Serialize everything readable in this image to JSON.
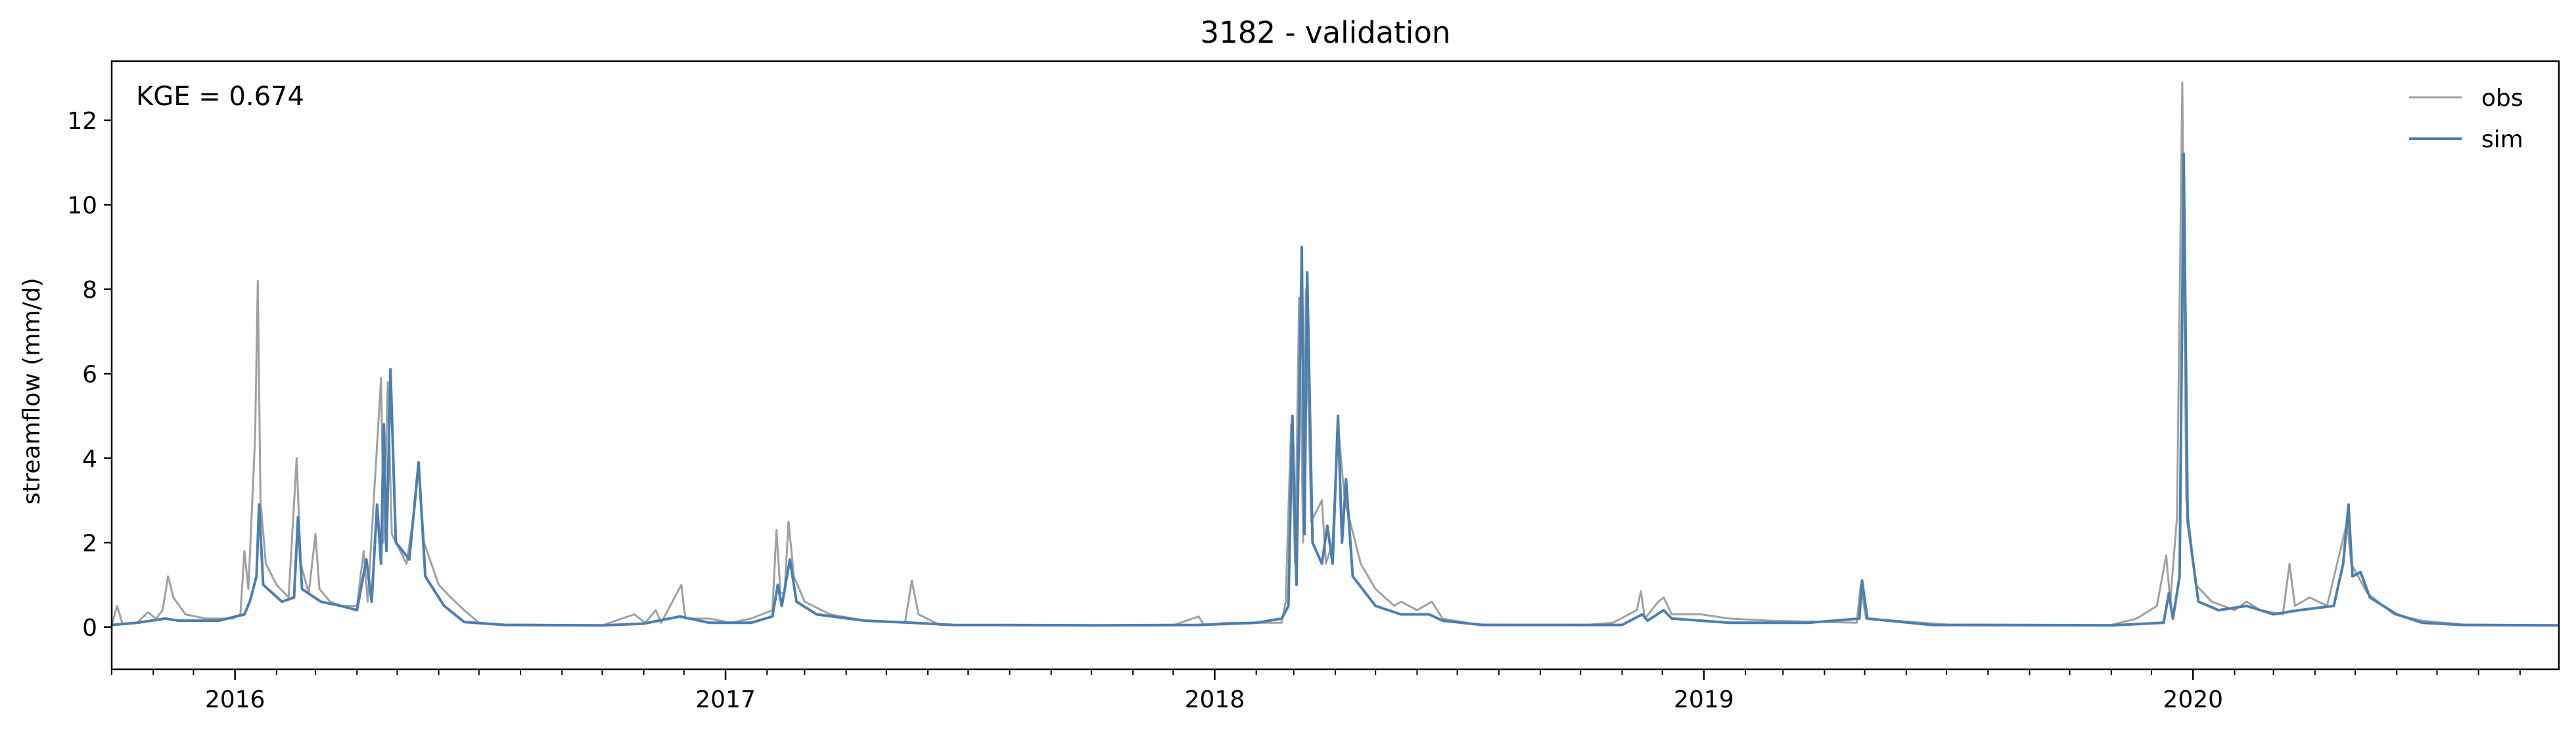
{
  "chart_data": {
    "type": "line",
    "title": "3182 - validation",
    "xlabel": "",
    "ylabel": "streamflow (mm/d)",
    "annotation": "KGE = 0.674",
    "xlim": [
      "2015-10-01",
      "2020-09-30"
    ],
    "ylim": [
      -1,
      13.4
    ],
    "yticks": [
      0,
      2,
      4,
      6,
      8,
      10,
      12
    ],
    "xticks": [
      {
        "date": "2016-01-01",
        "label": "2016"
      },
      {
        "date": "2017-01-01",
        "label": "2017"
      },
      {
        "date": "2018-01-01",
        "label": "2018"
      },
      {
        "date": "2019-01-01",
        "label": "2019"
      },
      {
        "date": "2020-01-01",
        "label": "2020"
      }
    ],
    "legend_position": "top-right",
    "grid": false,
    "series": [
      {
        "name": "obs",
        "color": "#a0a0a0",
        "points": [
          [
            "2015-10-01",
            0.05
          ],
          [
            "2015-10-05",
            0.5
          ],
          [
            "2015-10-09",
            0.08
          ],
          [
            "2015-10-20",
            0.1
          ],
          [
            "2015-10-28",
            0.35
          ],
          [
            "2015-11-03",
            0.2
          ],
          [
            "2015-11-08",
            0.4
          ],
          [
            "2015-11-12",
            1.2
          ],
          [
            "2015-11-16",
            0.7
          ],
          [
            "2015-11-25",
            0.3
          ],
          [
            "2015-12-10",
            0.2
          ],
          [
            "2015-12-30",
            0.2
          ],
          [
            "2016-01-05",
            0.3
          ],
          [
            "2016-01-08",
            1.8
          ],
          [
            "2016-01-11",
            0.9
          ],
          [
            "2016-01-16",
            4.5
          ],
          [
            "2016-01-18",
            8.2
          ],
          [
            "2016-01-20",
            3.0
          ],
          [
            "2016-01-24",
            1.5
          ],
          [
            "2016-02-01",
            1.0
          ],
          [
            "2016-02-10",
            0.7
          ],
          [
            "2016-02-16",
            4.0
          ],
          [
            "2016-02-19",
            1.5
          ],
          [
            "2016-02-25",
            0.8
          ],
          [
            "2016-03-01",
            2.2
          ],
          [
            "2016-03-04",
            0.9
          ],
          [
            "2016-03-12",
            0.6
          ],
          [
            "2016-03-20",
            0.5
          ],
          [
            "2016-04-01",
            0.5
          ],
          [
            "2016-04-06",
            1.8
          ],
          [
            "2016-04-09",
            0.6
          ],
          [
            "2016-04-19",
            5.9
          ],
          [
            "2016-04-21",
            2.0
          ],
          [
            "2016-04-24",
            5.8
          ],
          [
            "2016-04-27",
            2.2
          ],
          [
            "2016-05-08",
            1.5
          ],
          [
            "2016-05-14",
            2.8
          ],
          [
            "2016-05-17",
            3.8
          ],
          [
            "2016-05-21",
            2.0
          ],
          [
            "2016-06-01",
            1.0
          ],
          [
            "2016-06-10",
            0.7
          ],
          [
            "2016-06-20",
            0.4
          ],
          [
            "2016-07-01",
            0.1
          ],
          [
            "2016-07-20",
            0.06
          ],
          [
            "2016-09-01",
            0.05
          ],
          [
            "2016-10-01",
            0.04
          ],
          [
            "2016-10-25",
            0.3
          ],
          [
            "2016-11-02",
            0.1
          ],
          [
            "2016-11-10",
            0.4
          ],
          [
            "2016-11-14",
            0.1
          ],
          [
            "2016-11-29",
            1.0
          ],
          [
            "2016-12-02",
            0.2
          ],
          [
            "2016-12-20",
            0.2
          ],
          [
            "2017-01-05",
            0.1
          ],
          [
            "2017-01-20",
            0.2
          ],
          [
            "2017-02-05",
            0.4
          ],
          [
            "2017-02-08",
            2.3
          ],
          [
            "2017-02-11",
            0.8
          ],
          [
            "2017-02-14",
            0.8
          ],
          [
            "2017-02-17",
            2.5
          ],
          [
            "2017-02-21",
            1.2
          ],
          [
            "2017-03-01",
            0.6
          ],
          [
            "2017-03-20",
            0.3
          ],
          [
            "2017-04-15",
            0.15
          ],
          [
            "2017-05-15",
            0.1
          ],
          [
            "2017-05-20",
            1.1
          ],
          [
            "2017-05-25",
            0.3
          ],
          [
            "2017-06-10",
            0.05
          ],
          [
            "2017-09-01",
            0.04
          ],
          [
            "2017-12-01",
            0.04
          ],
          [
            "2017-12-20",
            0.25
          ],
          [
            "2017-12-24",
            0.05
          ],
          [
            "2018-01-10",
            0.1
          ],
          [
            "2018-02-01",
            0.1
          ],
          [
            "2018-02-20",
            0.1
          ],
          [
            "2018-02-23",
            0.6
          ],
          [
            "2018-02-27",
            4.8
          ],
          [
            "2018-03-02",
            1.5
          ],
          [
            "2018-03-05",
            7.8
          ],
          [
            "2018-03-08",
            2.0
          ],
          [
            "2018-03-10",
            8.0
          ],
          [
            "2018-03-14",
            2.5
          ],
          [
            "2018-03-22",
            3.0
          ],
          [
            "2018-03-25",
            1.5
          ],
          [
            "2018-03-30",
            2.0
          ],
          [
            "2018-04-03",
            4.8
          ],
          [
            "2018-04-08",
            3.0
          ],
          [
            "2018-04-20",
            1.5
          ],
          [
            "2018-05-01",
            0.9
          ],
          [
            "2018-05-15",
            0.5
          ],
          [
            "2018-05-20",
            0.6
          ],
          [
            "2018-06-01",
            0.4
          ],
          [
            "2018-06-12",
            0.6
          ],
          [
            "2018-06-20",
            0.2
          ],
          [
            "2018-07-15",
            0.06
          ],
          [
            "2018-10-01",
            0.04
          ],
          [
            "2018-10-25",
            0.1
          ],
          [
            "2018-11-12",
            0.4
          ],
          [
            "2018-11-15",
            0.85
          ],
          [
            "2018-11-18",
            0.2
          ],
          [
            "2018-11-28",
            0.6
          ],
          [
            "2018-12-02",
            0.7
          ],
          [
            "2018-12-08",
            0.3
          ],
          [
            "2018-12-30",
            0.3
          ],
          [
            "2019-01-20",
            0.2
          ],
          [
            "2019-02-20",
            0.15
          ],
          [
            "2019-04-25",
            0.1
          ],
          [
            "2019-04-28",
            1.0
          ],
          [
            "2019-05-02",
            0.2
          ],
          [
            "2019-07-01",
            0.06
          ],
          [
            "2019-11-01",
            0.05
          ],
          [
            "2019-11-20",
            0.2
          ],
          [
            "2019-12-05",
            0.5
          ],
          [
            "2019-12-12",
            1.7
          ],
          [
            "2019-12-15",
            0.6
          ],
          [
            "2019-12-20",
            2.6
          ],
          [
            "2019-12-24",
            12.9
          ],
          [
            "2019-12-27",
            3.0
          ],
          [
            "2020-01-03",
            1.0
          ],
          [
            "2020-01-15",
            0.6
          ],
          [
            "2020-02-01",
            0.4
          ],
          [
            "2020-02-10",
            0.6
          ],
          [
            "2020-02-20",
            0.4
          ],
          [
            "2020-03-08",
            0.3
          ],
          [
            "2020-03-13",
            1.5
          ],
          [
            "2020-03-17",
            0.5
          ],
          [
            "2020-03-28",
            0.7
          ],
          [
            "2020-04-10",
            0.5
          ],
          [
            "2020-04-25",
            2.5
          ],
          [
            "2020-04-28",
            1.5
          ],
          [
            "2020-05-10",
            0.8
          ],
          [
            "2020-05-30",
            0.3
          ],
          [
            "2020-06-20",
            0.15
          ],
          [
            "2020-07-20",
            0.06
          ],
          [
            "2020-09-30",
            0.04
          ]
        ]
      },
      {
        "name": "sim",
        "color": "#4a7fb0",
        "points": [
          [
            "2015-10-01",
            0.05
          ],
          [
            "2015-10-20",
            0.1
          ],
          [
            "2015-11-10",
            0.2
          ],
          [
            "2015-11-20",
            0.15
          ],
          [
            "2015-12-20",
            0.15
          ],
          [
            "2016-01-08",
            0.3
          ],
          [
            "2016-01-12",
            0.6
          ],
          [
            "2016-01-17",
            1.2
          ],
          [
            "2016-01-19",
            2.9
          ],
          [
            "2016-01-22",
            1.0
          ],
          [
            "2016-02-05",
            0.6
          ],
          [
            "2016-02-14",
            0.7
          ],
          [
            "2016-02-17",
            2.6
          ],
          [
            "2016-02-20",
            0.9
          ],
          [
            "2016-03-05",
            0.6
          ],
          [
            "2016-03-20",
            0.5
          ],
          [
            "2016-04-01",
            0.4
          ],
          [
            "2016-04-08",
            1.6
          ],
          [
            "2016-04-12",
            0.6
          ],
          [
            "2016-04-16",
            2.9
          ],
          [
            "2016-04-19",
            1.5
          ],
          [
            "2016-04-21",
            4.8
          ],
          [
            "2016-04-23",
            1.8
          ],
          [
            "2016-04-26",
            6.1
          ],
          [
            "2016-04-30",
            2.0
          ],
          [
            "2016-05-10",
            1.6
          ],
          [
            "2016-05-17",
            3.9
          ],
          [
            "2016-05-22",
            1.2
          ],
          [
            "2016-06-05",
            0.5
          ],
          [
            "2016-06-20",
            0.12
          ],
          [
            "2016-07-20",
            0.05
          ],
          [
            "2016-10-01",
            0.04
          ],
          [
            "2016-11-01",
            0.08
          ],
          [
            "2016-11-28",
            0.25
          ],
          [
            "2016-12-20",
            0.1
          ],
          [
            "2017-01-20",
            0.1
          ],
          [
            "2017-02-05",
            0.25
          ],
          [
            "2017-02-09",
            1.0
          ],
          [
            "2017-02-12",
            0.5
          ],
          [
            "2017-02-18",
            1.6
          ],
          [
            "2017-02-23",
            0.6
          ],
          [
            "2017-03-10",
            0.3
          ],
          [
            "2017-04-15",
            0.15
          ],
          [
            "2017-05-20",
            0.1
          ],
          [
            "2017-06-20",
            0.05
          ],
          [
            "2017-10-01",
            0.04
          ],
          [
            "2017-12-20",
            0.05
          ],
          [
            "2018-02-01",
            0.1
          ],
          [
            "2018-02-20",
            0.2
          ],
          [
            "2018-02-25",
            0.5
          ],
          [
            "2018-02-28",
            5.0
          ],
          [
            "2018-03-03",
            1.0
          ],
          [
            "2018-03-07",
            9.0
          ],
          [
            "2018-03-09",
            2.2
          ],
          [
            "2018-03-11",
            8.4
          ],
          [
            "2018-03-15",
            2.0
          ],
          [
            "2018-03-22",
            1.5
          ],
          [
            "2018-03-26",
            2.4
          ],
          [
            "2018-03-30",
            1.5
          ],
          [
            "2018-04-03",
            5.0
          ],
          [
            "2018-04-06",
            2.0
          ],
          [
            "2018-04-09",
            3.5
          ],
          [
            "2018-04-14",
            1.2
          ],
          [
            "2018-05-01",
            0.5
          ],
          [
            "2018-05-20",
            0.3
          ],
          [
            "2018-06-10",
            0.3
          ],
          [
            "2018-06-20",
            0.15
          ],
          [
            "2018-07-20",
            0.05
          ],
          [
            "2018-11-01",
            0.05
          ],
          [
            "2018-11-16",
            0.3
          ],
          [
            "2018-11-20",
            0.15
          ],
          [
            "2018-12-02",
            0.4
          ],
          [
            "2018-12-08",
            0.2
          ],
          [
            "2019-01-20",
            0.1
          ],
          [
            "2019-03-20",
            0.1
          ],
          [
            "2019-04-27",
            0.2
          ],
          [
            "2019-04-29",
            1.1
          ],
          [
            "2019-05-03",
            0.2
          ],
          [
            "2019-06-20",
            0.05
          ],
          [
            "2019-11-01",
            0.04
          ],
          [
            "2019-12-10",
            0.1
          ],
          [
            "2019-12-14",
            0.8
          ],
          [
            "2019-12-17",
            0.2
          ],
          [
            "2019-12-22",
            1.2
          ],
          [
            "2019-12-25",
            11.2
          ],
          [
            "2019-12-28",
            2.5
          ],
          [
            "2020-01-05",
            0.6
          ],
          [
            "2020-01-20",
            0.4
          ],
          [
            "2020-02-10",
            0.5
          ],
          [
            "2020-03-01",
            0.3
          ],
          [
            "2020-03-20",
            0.4
          ],
          [
            "2020-04-15",
            0.5
          ],
          [
            "2020-04-22",
            1.5
          ],
          [
            "2020-04-26",
            2.9
          ],
          [
            "2020-04-29",
            1.2
          ],
          [
            "2020-05-05",
            1.3
          ],
          [
            "2020-05-12",
            0.7
          ],
          [
            "2020-06-01",
            0.3
          ],
          [
            "2020-06-20",
            0.1
          ],
          [
            "2020-07-20",
            0.05
          ],
          [
            "2020-09-30",
            0.04
          ]
        ]
      }
    ]
  }
}
